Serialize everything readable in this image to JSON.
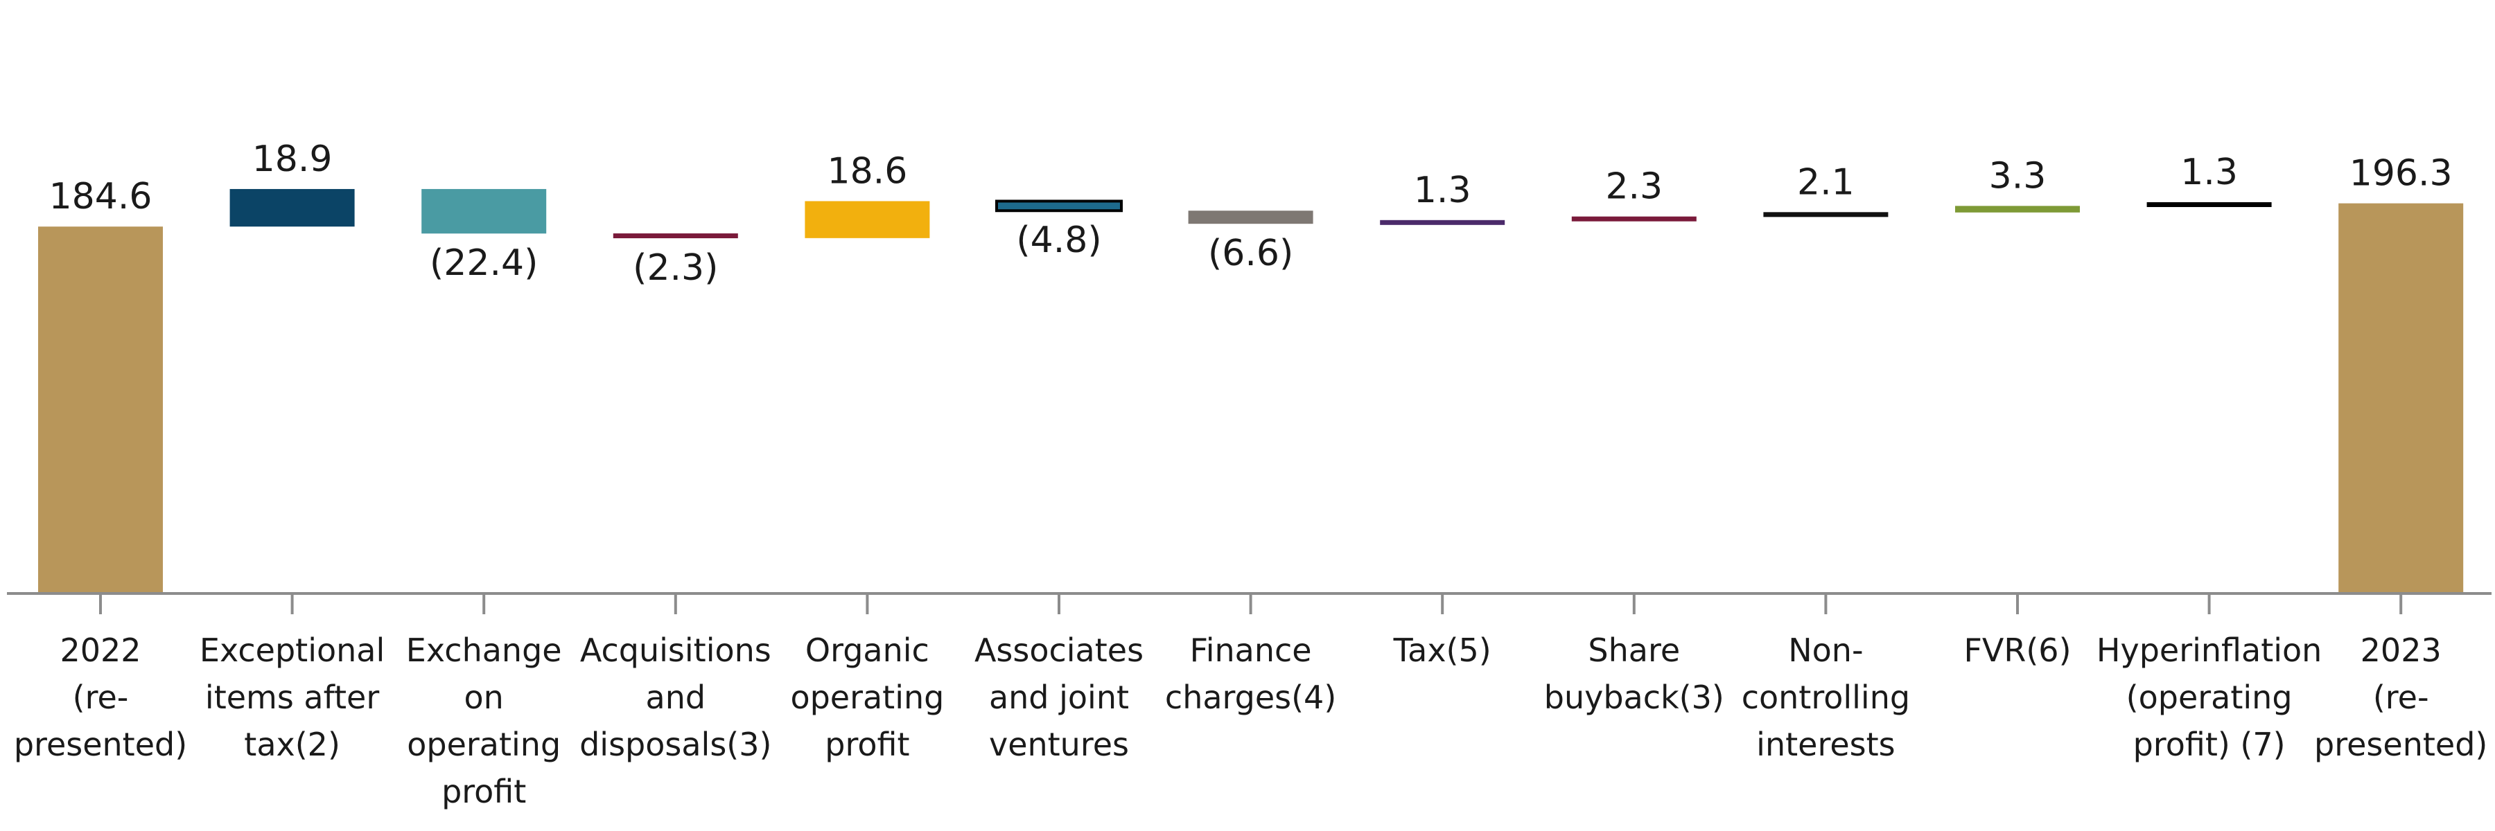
{
  "chart_data": {
    "type": "waterfall",
    "title": "",
    "xlabel": "",
    "ylabel": "",
    "ylim": [
      0,
      210
    ],
    "grid": false,
    "legend": "none",
    "categories": [
      [
        "2022",
        "(re-",
        "presented)"
      ],
      [
        "Exceptional",
        "items after",
        "tax(2)"
      ],
      [
        "Exchange",
        "on",
        "operating",
        "profit"
      ],
      [
        "Acquisitions",
        "and",
        "disposals(3)"
      ],
      [
        "Organic",
        "operating",
        "profit"
      ],
      [
        "Associates",
        "and joint",
        "ventures"
      ],
      [
        "Finance",
        "charges(4)"
      ],
      [
        "Tax(5)"
      ],
      [
        "Share",
        "buyback(3)"
      ],
      [
        "Non-",
        "controlling",
        "interests"
      ],
      [
        "FVR(6)"
      ],
      [
        "Hyperinflation",
        "(operating",
        "profit) (7)"
      ],
      [
        "2023",
        "(re-",
        "presented)"
      ]
    ],
    "values": [
      184.6,
      18.9,
      -22.4,
      -2.3,
      18.6,
      -4.8,
      -6.6,
      1.3,
      2.3,
      2.1,
      3.3,
      1.3,
      196.3
    ],
    "kinds": [
      "total",
      "delta",
      "delta",
      "delta",
      "delta",
      "delta",
      "delta",
      "delta",
      "delta",
      "delta",
      "delta",
      "delta",
      "total"
    ],
    "labels": [
      "184.6",
      "18.9",
      "(22.4)",
      "(2.3)",
      "18.6",
      "(4.8)",
      "(6.6)",
      "1.3",
      "2.3",
      "2.1",
      "3.3",
      "1.3",
      "196.3"
    ],
    "colors": [
      "#B8965A",
      "#0B4466",
      "#4A9BA3",
      "#7A1A3A",
      "#F2B00E",
      "#1D6A8C",
      "#7E7873",
      "#4B2A6A",
      "#7A1A3A",
      "#111111",
      "#7E9A36",
      "#000000",
      "#B8965A"
    ],
    "outlines": [
      "",
      "",
      "",
      "",
      "",
      "#000000",
      "",
      "",
      "",
      "",
      "",
      "",
      ""
    ]
  }
}
